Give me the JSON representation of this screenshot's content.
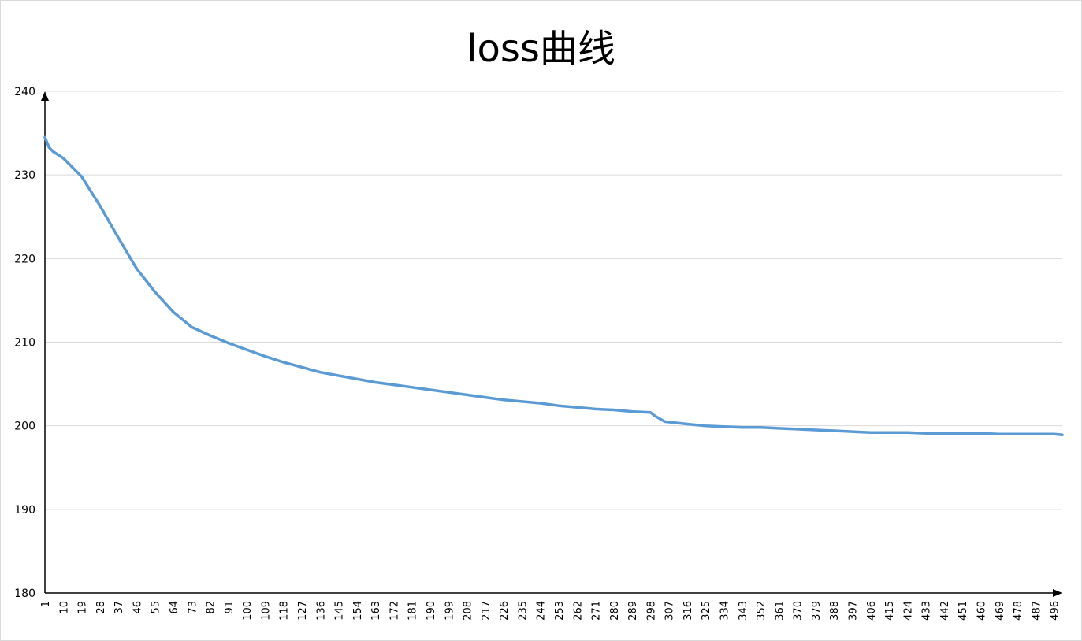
{
  "chart_data": {
    "type": "line",
    "title": "loss曲线",
    "xlabel": "",
    "ylabel": "",
    "ylim": [
      180,
      240
    ],
    "yticks": [
      180,
      190,
      200,
      210,
      220,
      230,
      240
    ],
    "xlim": [
      1,
      500
    ],
    "xticks": [
      1,
      10,
      19,
      28,
      37,
      46,
      55,
      64,
      73,
      82,
      91,
      100,
      109,
      118,
      127,
      136,
      145,
      154,
      163,
      172,
      181,
      190,
      199,
      208,
      217,
      226,
      235,
      244,
      253,
      262,
      271,
      280,
      289,
      298,
      307,
      316,
      325,
      334,
      343,
      352,
      361,
      370,
      379,
      388,
      397,
      406,
      415,
      424,
      433,
      442,
      451,
      460,
      469,
      478,
      487,
      496
    ],
    "grid": true,
    "legend": "none",
    "color": "#5b9bd5",
    "series": [
      {
        "x": [
          1,
          3,
          5,
          10,
          19,
          28,
          37,
          46,
          55,
          64,
          73,
          82,
          91,
          100,
          109,
          118,
          127,
          136,
          145,
          154,
          163,
          172,
          181,
          190,
          199,
          208,
          217,
          226,
          235,
          244,
          253,
          262,
          271,
          280,
          289,
          298,
          300,
          305,
          316,
          325,
          334,
          343,
          352,
          361,
          370,
          379,
          388,
          397,
          406,
          415,
          424,
          433,
          442,
          451,
          460,
          469,
          478,
          487,
          496,
          500
        ],
        "values": [
          234.5,
          233.3,
          232.8,
          232.0,
          229.8,
          226.3,
          222.5,
          218.8,
          216.0,
          213.6,
          211.8,
          210.8,
          209.9,
          209.1,
          208.3,
          207.6,
          207.0,
          206.4,
          206.0,
          205.6,
          205.2,
          204.9,
          204.6,
          204.3,
          204.0,
          203.7,
          203.4,
          203.1,
          202.9,
          202.7,
          202.4,
          202.2,
          202.0,
          201.9,
          201.7,
          201.6,
          201.2,
          200.5,
          200.2,
          200.0,
          199.9,
          199.8,
          199.8,
          199.7,
          199.6,
          199.5,
          199.4,
          199.3,
          199.2,
          199.2,
          199.2,
          199.1,
          199.1,
          199.1,
          199.1,
          199.0,
          199.0,
          199.0,
          199.0,
          198.9
        ]
      }
    ]
  }
}
